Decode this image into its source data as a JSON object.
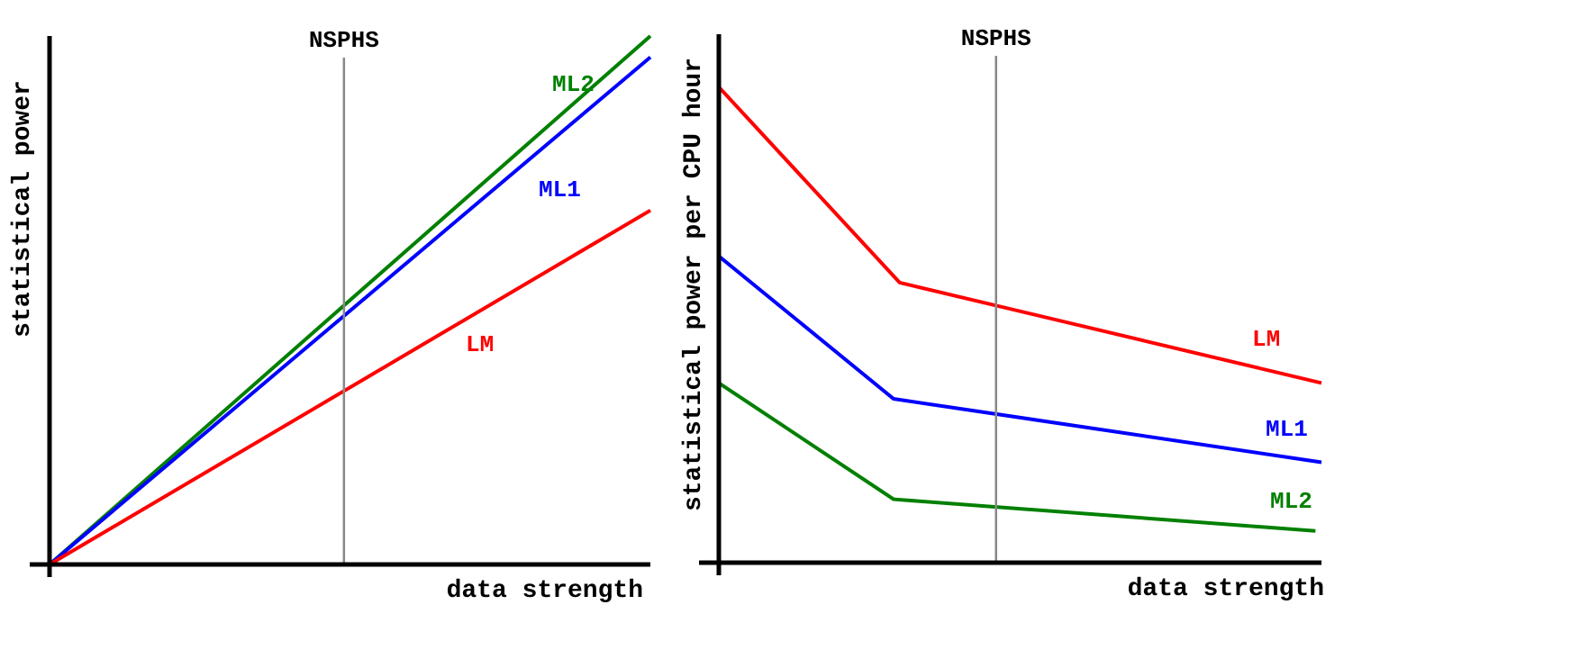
{
  "colors": {
    "LM": "#ff0000",
    "ML1": "#0000ff",
    "ML2": "#008000",
    "axis": "#000000",
    "marker": "#888888"
  },
  "chart_data": [
    {
      "type": "line",
      "xlabel": "data strength",
      "ylabel": "statistical power",
      "axis_ticks": "none",
      "grid": false,
      "reference_line": {
        "label": "NSPHS",
        "x": 0.49
      },
      "xlim": [
        0,
        1
      ],
      "ylim": [
        0,
        1
      ],
      "series": [
        {
          "name": "ML2",
          "color": "#008000",
          "x": [
            0,
            1
          ],
          "y": [
            0,
            1.0
          ]
        },
        {
          "name": "ML1",
          "color": "#0000ff",
          "x": [
            0,
            1
          ],
          "y": [
            0,
            0.96
          ]
        },
        {
          "name": "LM",
          "color": "#ff0000",
          "x": [
            0,
            1
          ],
          "y": [
            0,
            0.67
          ]
        }
      ]
    },
    {
      "type": "line",
      "xlabel": "data strength",
      "ylabel": "statistical power per CPU hour",
      "axis_ticks": "none",
      "grid": false,
      "reference_line": {
        "label": "NSPHS",
        "x": 0.46
      },
      "xlim": [
        0,
        1
      ],
      "ylim": [
        0,
        1
      ],
      "series": [
        {
          "name": "LM",
          "color": "#ff0000",
          "x": [
            0,
            0.3,
            1.0
          ],
          "y": [
            0.9,
            0.53,
            0.34
          ]
        },
        {
          "name": "ML1",
          "color": "#0000ff",
          "x": [
            0,
            0.29,
            1.0
          ],
          "y": [
            0.58,
            0.31,
            0.19
          ]
        },
        {
          "name": "ML2",
          "color": "#008000",
          "x": [
            0,
            0.29,
            0.99
          ],
          "y": [
            0.34,
            0.12,
            0.06
          ]
        }
      ]
    }
  ]
}
